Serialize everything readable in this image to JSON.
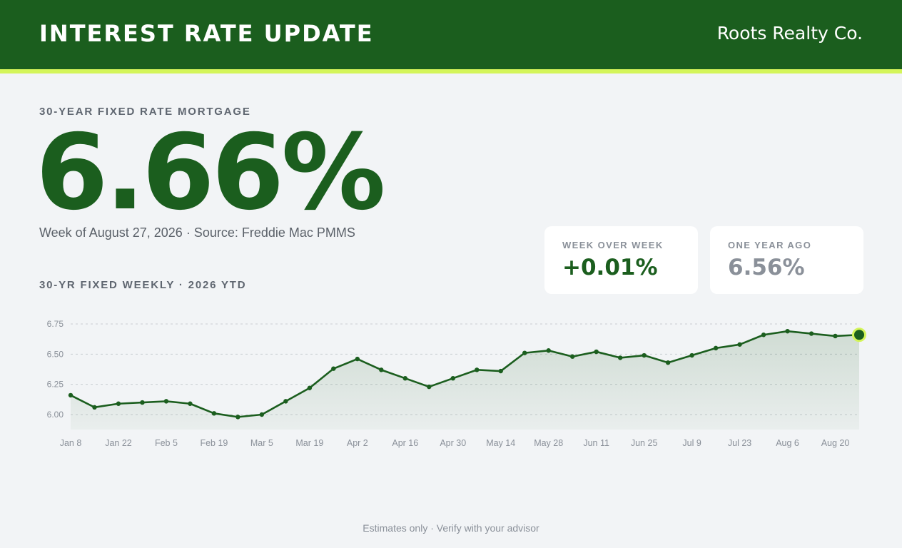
{
  "header": {
    "title": "INTEREST RATE UPDATE",
    "brand": "Roots Realty Co."
  },
  "headline": {
    "label": "30-YEAR FIXED RATE MORTGAGE",
    "rate": "6.66%",
    "subline": "Week of August 27, 2026 · Source: Freddie Mac PMMS"
  },
  "cards": {
    "week_over_week": {
      "label": "WEEK OVER WEEK",
      "value": "+0.01%"
    },
    "one_year_ago": {
      "label": "ONE YEAR AGO",
      "value": "6.56%"
    }
  },
  "chart_title": "30-YR FIXED WEEKLY · 2026 YTD",
  "footer": "Estimates only · Verify with your advisor",
  "colors": {
    "brand_green": "#1b5e1e",
    "accent_lime": "#d4f55a",
    "background": "#f2f4f6"
  },
  "chart_data": {
    "type": "line",
    "x": [
      "Jan 8",
      "Jan 15",
      "Jan 22",
      "Jan 29",
      "Feb 5",
      "Feb 12",
      "Feb 19",
      "Feb 26",
      "Mar 5",
      "Mar 12",
      "Mar 19",
      "Mar 26",
      "Apr 2",
      "Apr 9",
      "Apr 16",
      "Apr 23",
      "Apr 30",
      "May 7",
      "May 14",
      "May 21",
      "May 28",
      "Jun 4",
      "Jun 11",
      "Jun 18",
      "Jun 25",
      "Jul 2",
      "Jul 9",
      "Jul 16",
      "Jul 23",
      "Jul 30",
      "Aug 6",
      "Aug 13",
      "Aug 20",
      "Aug 27"
    ],
    "values": [
      6.16,
      6.06,
      6.09,
      6.1,
      6.11,
      6.09,
      6.01,
      5.98,
      6.0,
      6.11,
      6.22,
      6.38,
      6.46,
      6.37,
      6.3,
      6.23,
      6.3,
      6.37,
      6.36,
      6.51,
      6.53,
      6.48,
      6.52,
      6.47,
      6.49,
      6.43,
      6.49,
      6.55,
      6.58,
      6.66,
      6.69,
      6.67,
      6.65,
      6.66
    ],
    "tick_labels": [
      "Jan 8",
      "Jan 22",
      "Feb 5",
      "Feb 19",
      "Mar 5",
      "Mar 19",
      "Apr 2",
      "Apr 16",
      "Apr 30",
      "May 14",
      "May 28",
      "Jun 11",
      "Jun 25",
      "Jul 9",
      "Jul 23",
      "Aug 6",
      "Aug 20"
    ],
    "y_ticks": [
      "6.00",
      "6.25",
      "6.50",
      "6.75"
    ],
    "ylim": [
      5.88,
      6.75
    ],
    "grid": true,
    "area_fill": true,
    "highlight_last_point": true
  }
}
